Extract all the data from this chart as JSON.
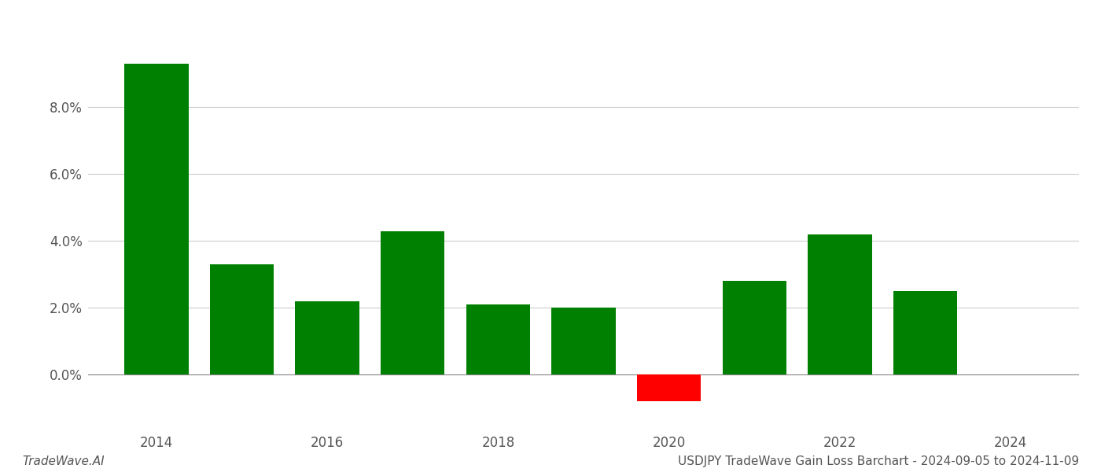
{
  "years": [
    2014,
    2015,
    2016,
    2017,
    2018,
    2019,
    2020,
    2021,
    2022,
    2023,
    2024
  ],
  "values": [
    0.093,
    0.033,
    0.022,
    0.043,
    0.021,
    0.02,
    -0.008,
    0.028,
    0.042,
    0.025,
    null
  ],
  "bar_colors": [
    "#008000",
    "#008000",
    "#008000",
    "#008000",
    "#008000",
    "#008000",
    "#ff0000",
    "#008000",
    "#008000",
    "#008000",
    null
  ],
  "title": "USDJPY TradeWave Gain Loss Barchart - 2024-09-05 to 2024-11-09",
  "watermark": "TradeWave.AI",
  "background_color": "#ffffff",
  "bar_width": 0.75,
  "ylim": [
    -0.015,
    0.105
  ],
  "ytick_values": [
    0.0,
    0.02,
    0.04,
    0.06,
    0.08
  ],
  "xtick_values": [
    2014,
    2016,
    2018,
    2020,
    2022,
    2024
  ],
  "xlim": [
    2013.2,
    2024.8
  ],
  "grid_color": "#cccccc",
  "axis_color": "#888888",
  "text_color": "#555555",
  "title_fontsize": 11,
  "watermark_fontsize": 11,
  "tick_fontsize": 12
}
